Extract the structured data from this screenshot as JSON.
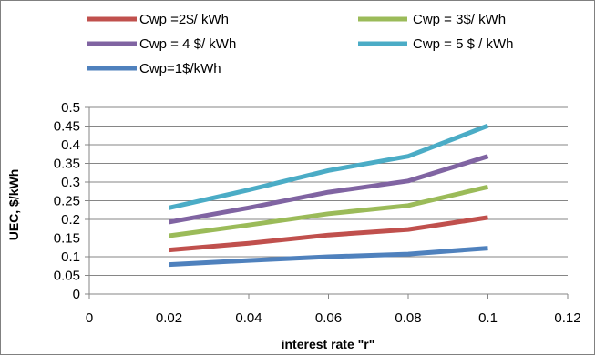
{
  "chart_data": {
    "type": "line",
    "title": "",
    "xlabel": "interest rate \"r\"",
    "ylabel": "UEC, $/kWh",
    "xlim": [
      0,
      0.12
    ],
    "ylim": [
      0,
      0.5
    ],
    "x_ticks": [
      "0",
      "0.02",
      "0.04",
      "0.06",
      "0.08",
      "0.1",
      "0.12"
    ],
    "y_ticks": [
      "0",
      "0.05",
      "0.1",
      "0.15",
      "0.2",
      "0.25",
      "0.3",
      "0.35",
      "0.4",
      "0.45",
      "0.5"
    ],
    "grid": "horizontal",
    "legend_position": "top",
    "x": [
      0.02,
      0.04,
      0.06,
      0.08,
      0.1
    ],
    "series": [
      {
        "name": "Cwp =2$/ kWh",
        "color": "#c0504d",
        "values": [
          0.118,
          0.136,
          0.158,
          0.173,
          0.205
        ]
      },
      {
        "name": "Cwp = 3$/ kWh",
        "color": "#9bbb59",
        "values": [
          0.156,
          0.185,
          0.215,
          0.237,
          0.287
        ]
      },
      {
        "name": "Cwp = 4 $/ kWh",
        "color": "#8064a2",
        "values": [
          0.193,
          0.231,
          0.273,
          0.303,
          0.369
        ]
      },
      {
        "name": "Cwp = 5 $ / kWh",
        "color": "#4bacc6",
        "values": [
          0.231,
          0.279,
          0.331,
          0.369,
          0.451
        ]
      },
      {
        "name": "Cwp=1$/kWh",
        "color": "#4f81bd",
        "values": [
          0.079,
          0.09,
          0.1,
          0.107,
          0.123
        ]
      }
    ]
  }
}
